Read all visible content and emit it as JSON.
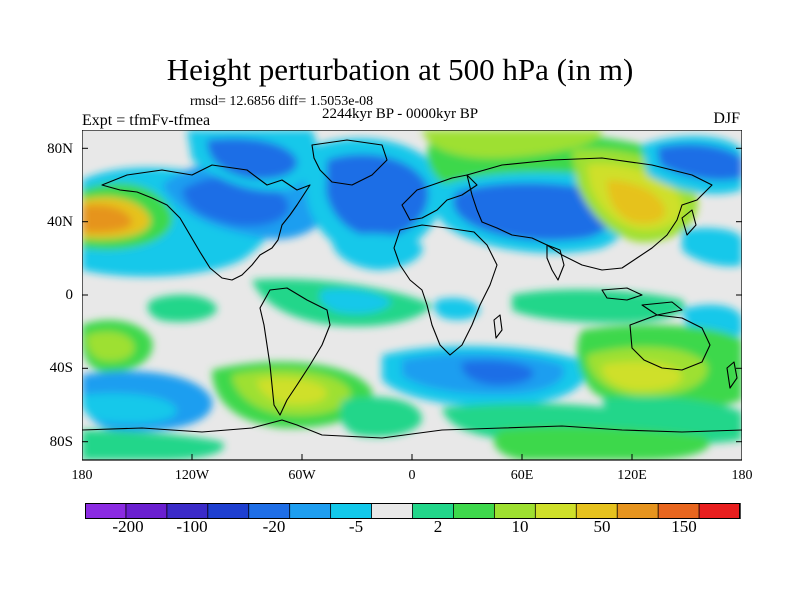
{
  "title": "Height perturbation at 500 hPa (in m)",
  "stats": "rmsd= 12.6856 diff= 1.5053e-08",
  "period": "2244kyr BP - 0000kyr BP",
  "experiment": "Expt = tfmFv-tfmea",
  "season": "DJF",
  "map": {
    "lon_range": [
      -180,
      180
    ],
    "lat_range": [
      -90,
      90
    ],
    "lat_labels": [
      "80N",
      "40N",
      "0",
      "40S",
      "80S"
    ],
    "lon_labels": [
      "180",
      "120W",
      "60W",
      "0",
      "60E",
      "120E",
      "180"
    ]
  },
  "colorbar": {
    "colors": [
      "#8b2be2",
      "#6a1fd0",
      "#3b2bc8",
      "#1e3fd0",
      "#1e6ee6",
      "#1e9ef0",
      "#12c8ea",
      "#e8e8e8",
      "#22d68a",
      "#3ed84c",
      "#9ee030",
      "#cfe02a",
      "#e6c21e",
      "#e6941e",
      "#e8661e",
      "#e81e1e"
    ],
    "labels": [
      "-200",
      "-100",
      "-20",
      "-5",
      "2",
      "10",
      "50",
      "150"
    ]
  },
  "legend_colors": {
    "background": "#e8e8e8",
    "coast": "#000000"
  }
}
